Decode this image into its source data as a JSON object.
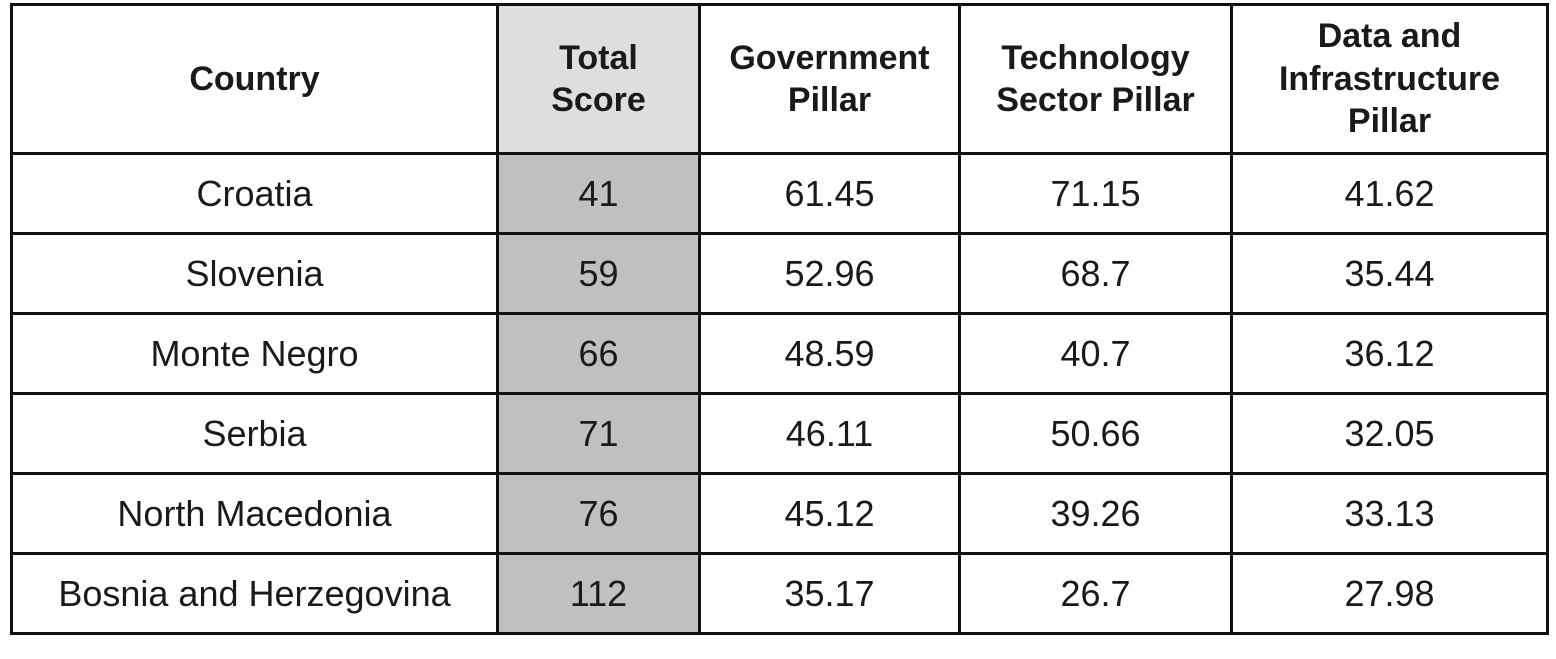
{
  "table": {
    "header": [
      "Country",
      "Total Score",
      "Government Pillar",
      "Technology Sector Pillar",
      "Data and Infrastructure Pillar"
    ],
    "rows": [
      [
        "Croatia",
        41,
        61.45,
        71.15,
        41.62
      ],
      [
        "Slovenia",
        59,
        52.96,
        68.7,
        35.44
      ],
      [
        "Monte Negro",
        66,
        48.59,
        40.7,
        36.12
      ],
      [
        "Serbia",
        71,
        46.11,
        50.66,
        32.05
      ],
      [
        "North Macedonia",
        76,
        45.12,
        39.26,
        33.13
      ],
      [
        "Bosnia and Herzegovina",
        112,
        35.17,
        26.7,
        27.98
      ]
    ]
  }
}
